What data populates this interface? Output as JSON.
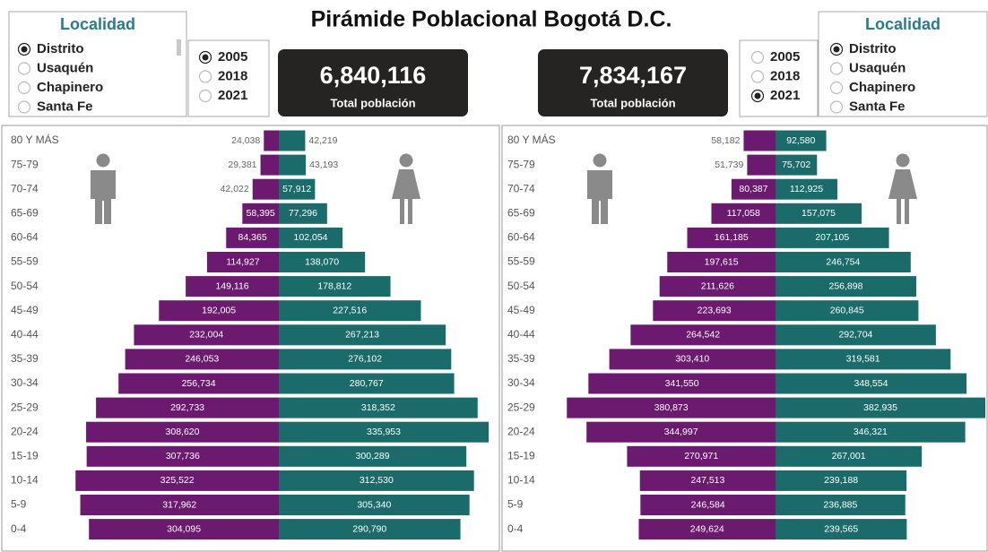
{
  "title": "Pirámide Poblacional Bogotá D.C.",
  "panels": [
    {
      "localidad": {
        "title": "Localidad",
        "options": [
          "Distrito",
          "Usaquén",
          "Chapinero",
          "Santa Fe"
        ],
        "selected": 0
      },
      "years": {
        "options": [
          "2005",
          "2018",
          "2021"
        ],
        "selected": 0
      },
      "kpi": {
        "value": "6,840,116",
        "label": "Total población"
      }
    },
    {
      "localidad": {
        "title": "Localidad",
        "options": [
          "Distrito",
          "Usaquén",
          "Chapinero",
          "Santa Fe"
        ],
        "selected": 0
      },
      "years": {
        "options": [
          "2005",
          "2018",
          "2021"
        ],
        "selected": 2
      },
      "kpi": {
        "value": "7,834,167",
        "label": "Total población"
      }
    }
  ],
  "chart_data": [
    {
      "type": "pyramid",
      "categories": [
        "80 Y MÁS",
        "75-79",
        "70-74",
        "65-69",
        "60-64",
        "55-59",
        "50-54",
        "45-49",
        "40-44",
        "35-39",
        "30-34",
        "25-29",
        "20-24",
        "15-19",
        "10-14",
        "5-9",
        "0-4"
      ],
      "series": [
        {
          "color": "#6b1a6f",
          "side": "left",
          "values": [
            24038,
            29381,
            42022,
            58395,
            84365,
            114927,
            149116,
            192005,
            232004,
            246053,
            256734,
            292733,
            308620,
            307736,
            325522,
            317962,
            304095
          ],
          "value_labels": [
            "24,038",
            "29,381",
            "42,022",
            "58,395",
            "84,365",
            "114,927",
            "149,116",
            "192,005",
            "232,004",
            "246,053",
            "256,734",
            "292,733",
            "308,620",
            "307,736",
            "325,522",
            "317,962",
            "304,095"
          ]
        },
        {
          "color": "#1b6b6b",
          "side": "right",
          "values": [
            42219,
            43193,
            57912,
            77296,
            102054,
            138070,
            178812,
            227516,
            267213,
            276102,
            280767,
            318352,
            335953,
            300289,
            312530,
            305340,
            290790
          ],
          "value_labels": [
            "42,219",
            "43,193",
            "57,912",
            "77,296",
            "102,054",
            "138,070",
            "178,812",
            "227,516",
            "267,213",
            "276,102",
            "280,767",
            "318,352",
            "335,953",
            "300,289",
            "312,530",
            "305,340",
            "290,790"
          ]
        }
      ]
    },
    {
      "type": "pyramid",
      "categories": [
        "80 Y MÁS",
        "75-79",
        "70-74",
        "65-69",
        "60-64",
        "55-59",
        "50-54",
        "45-49",
        "40-44",
        "35-39",
        "30-34",
        "25-29",
        "20-24",
        "15-19",
        "10-14",
        "5-9",
        "0-4"
      ],
      "series": [
        {
          "color": "#6b1a6f",
          "side": "left",
          "values": [
            58182,
            51739,
            80387,
            117058,
            161185,
            197615,
            211626,
            223693,
            264542,
            303410,
            341550,
            380873,
            344997,
            270971,
            247513,
            246584,
            249624
          ],
          "value_labels": [
            "58,182",
            "51,739",
            "80,387",
            "117,058",
            "161,185",
            "197,615",
            "211,626",
            "223,693",
            "264,542",
            "303,410",
            "341,550",
            "380,873",
            "344,997",
            "270,971",
            "247,513",
            "246,584",
            "249,624"
          ]
        },
        {
          "color": "#1b6b6b",
          "side": "right",
          "values": [
            92580,
            75702,
            112925,
            157075,
            207105,
            246754,
            256898,
            260845,
            292704,
            319581,
            348554,
            382935,
            346321,
            267001,
            239188,
            236885,
            239565
          ],
          "value_labels": [
            "92,580",
            "75,702",
            "112,925",
            "157,075",
            "207,105",
            "246,754",
            "256,898",
            "260,845",
            "292,704",
            "319,581",
            "348,554",
            "382,935",
            "346,321",
            "267,001",
            "239,188",
            "236,885",
            "239,565"
          ]
        }
      ]
    }
  ]
}
